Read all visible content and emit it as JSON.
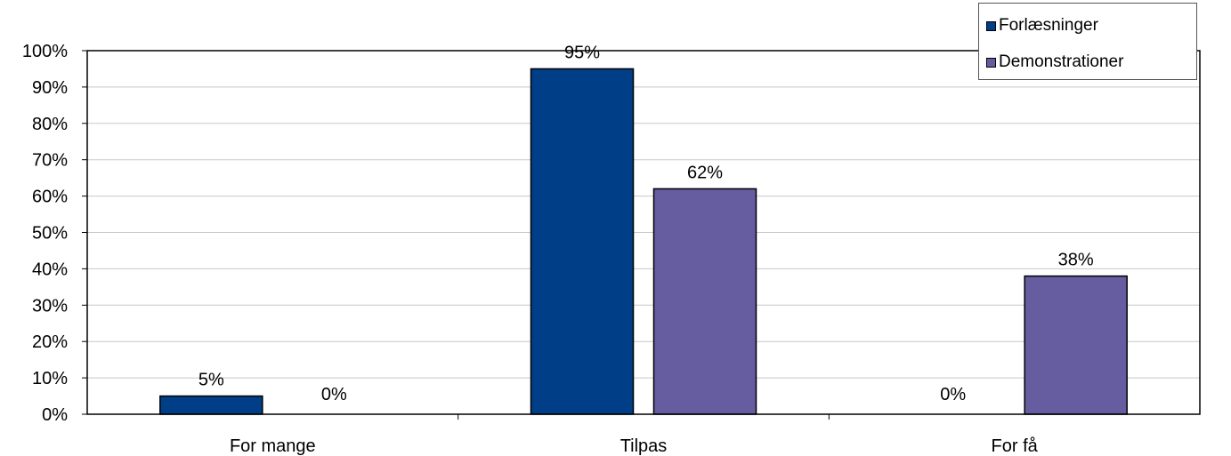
{
  "chart_data": {
    "type": "bar",
    "categories": [
      "For mange",
      "Tilpas",
      "For få"
    ],
    "series": [
      {
        "name": "Forlæsninger",
        "values": [
          5,
          95,
          0
        ],
        "color": "#003f87",
        "labels": [
          "5%",
          "95%",
          "0%"
        ]
      },
      {
        "name": "Demonstrationer",
        "values": [
          0,
          62,
          38
        ],
        "color": "#665ca0",
        "labels": [
          "0%",
          "62%",
          "38%"
        ]
      }
    ],
    "ylim": [
      0,
      100
    ],
    "yticks": [
      "0%",
      "10%",
      "20%",
      "30%",
      "40%",
      "50%",
      "60%",
      "70%",
      "80%",
      "90%",
      "100%"
    ],
    "grid": true,
    "legend_position": "top-right"
  }
}
